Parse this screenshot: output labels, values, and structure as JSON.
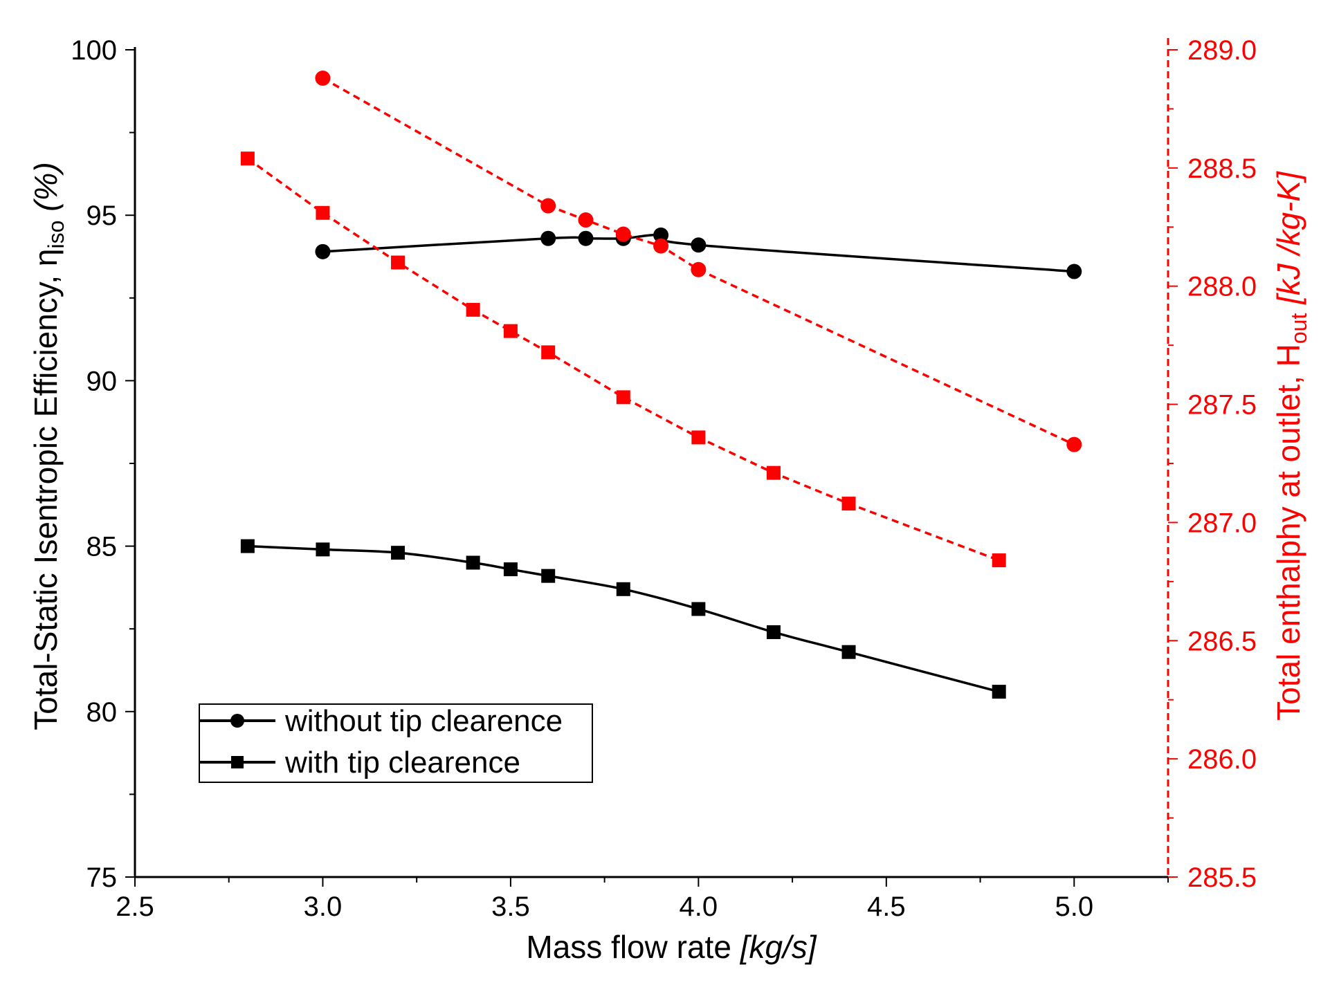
{
  "chart_data": {
    "type": "line",
    "colors": {
      "efficiency": "#000000",
      "enthalpy": "#ff0000"
    },
    "x_axis": {
      "label_main": "Mass flow rate ",
      "label_unit": "[kg/s]",
      "range": [
        2.5,
        5.25
      ],
      "ticks": [
        2.5,
        3.0,
        3.5,
        4.0,
        4.5,
        5.0
      ],
      "tick_labels": [
        "2.5",
        "3.0",
        "3.5",
        "4.0",
        "4.5",
        "5.0"
      ]
    },
    "y_left": {
      "label_main": "Total-Static Isentropic Efficiency, ",
      "label_symbol": "η",
      "label_sub": "iso",
      "label_unit": "  (%)",
      "range": [
        75,
        100
      ],
      "ticks": [
        75,
        80,
        85,
        90,
        95,
        100
      ],
      "tick_labels": [
        "75",
        "80",
        "85",
        "90",
        "95",
        "100"
      ]
    },
    "y_right": {
      "label_main": "Total enthalphy at outlet, H",
      "label_sub": "out",
      "label_unit": " [kJ /kg-K]",
      "range": [
        285.5,
        289.0
      ],
      "ticks": [
        285.5,
        286.0,
        286.5,
        287.0,
        287.5,
        288.0,
        288.5,
        289.0
      ],
      "tick_labels": [
        "285.5",
        "286.0",
        "286.5",
        "287.0",
        "287.5",
        "288.0",
        "288.5",
        "289.0"
      ]
    },
    "series": [
      {
        "name": "without tip clearence",
        "axis": "left",
        "marker": "circle",
        "style": "solid",
        "x": [
          3.0,
          3.6,
          3.7,
          3.8,
          3.9,
          4.0,
          5.0
        ],
        "y": [
          93.9,
          94.3,
          94.3,
          94.3,
          94.4,
          94.1,
          93.3
        ]
      },
      {
        "name": "with tip clearence",
        "axis": "left",
        "marker": "square",
        "style": "solid",
        "x": [
          2.8,
          3.0,
          3.2,
          3.4,
          3.5,
          3.6,
          3.8,
          4.0,
          4.2,
          4.4,
          4.8
        ],
        "y": [
          85.0,
          84.9,
          84.8,
          84.5,
          84.3,
          84.1,
          83.7,
          83.1,
          82.4,
          81.8,
          80.6
        ]
      },
      {
        "axis": "right",
        "marker": "circle",
        "style": "dashed",
        "x": [
          3.0,
          3.6,
          3.7,
          3.8,
          3.9,
          4.0,
          5.0
        ],
        "y": [
          288.88,
          288.34,
          288.28,
          288.22,
          288.17,
          288.07,
          287.33
        ]
      },
      {
        "axis": "right",
        "marker": "square",
        "style": "dashed",
        "x": [
          2.8,
          3.0,
          3.2,
          3.4,
          3.5,
          3.6,
          3.8,
          4.0,
          4.2,
          4.4,
          4.8
        ],
        "y": [
          288.54,
          288.31,
          288.1,
          287.9,
          287.81,
          287.72,
          287.53,
          287.36,
          287.21,
          287.08,
          286.84
        ]
      }
    ],
    "legend": {
      "position": "bottom-left",
      "entries": [
        "without tip clearence",
        "with tip clearence"
      ]
    }
  }
}
